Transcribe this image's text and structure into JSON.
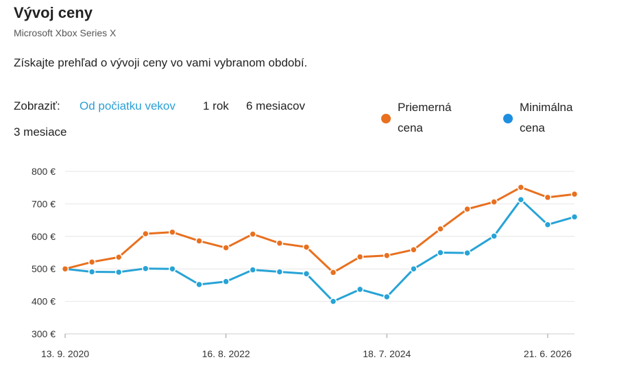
{
  "header": {
    "title": "Vývoj ceny",
    "subtitle": "Microsoft Xbox Series X",
    "description": "Získajte prehľad o vývoji ceny vo vami vybranom období."
  },
  "range_selector": {
    "label": "Zobraziť:",
    "options": [
      "Od počiatku vekov",
      "1 rok",
      "6 mesiacov",
      "3 mesiace"
    ],
    "active_index": 0
  },
  "colors": {
    "average": "#e8701f",
    "minimum": "#27a3d6",
    "active_link": "#2a9fd6",
    "legend_minimum": "#1e8fe0",
    "grid": "#e6e6e6"
  },
  "chart_data": {
    "type": "line",
    "ylim": [
      300,
      800
    ],
    "yticks": [
      300,
      400,
      500,
      600,
      700,
      800
    ],
    "ytick_labels": [
      "300 €",
      "400 €",
      "500 €",
      "600 €",
      "700 €",
      "800 €"
    ],
    "xticks": [
      {
        "label": "13. 9. 2020",
        "index": 0
      },
      {
        "label": "16. 8. 2022",
        "index": 6
      },
      {
        "label": "18. 7. 2024",
        "index": 12
      },
      {
        "label": "21. 6. 2026",
        "index": 18
      }
    ],
    "grid": true,
    "legend_position": "top-right",
    "series": [
      {
        "name": "Priemerná cena",
        "color": "#e8701f",
        "values": [
          500,
          521,
          536,
          608,
          613,
          586,
          565,
          607,
          579,
          567,
          489,
          537,
          541,
          559,
          623,
          684,
          706,
          751,
          720,
          730
        ]
      },
      {
        "name": "Minimálna cena",
        "color": "#27a3d6",
        "values": [
          500,
          491,
          490,
          501,
          500,
          452,
          461,
          497,
          491,
          485,
          400,
          437,
          414,
          500,
          550,
          549,
          601,
          713,
          636,
          660
        ]
      }
    ]
  }
}
